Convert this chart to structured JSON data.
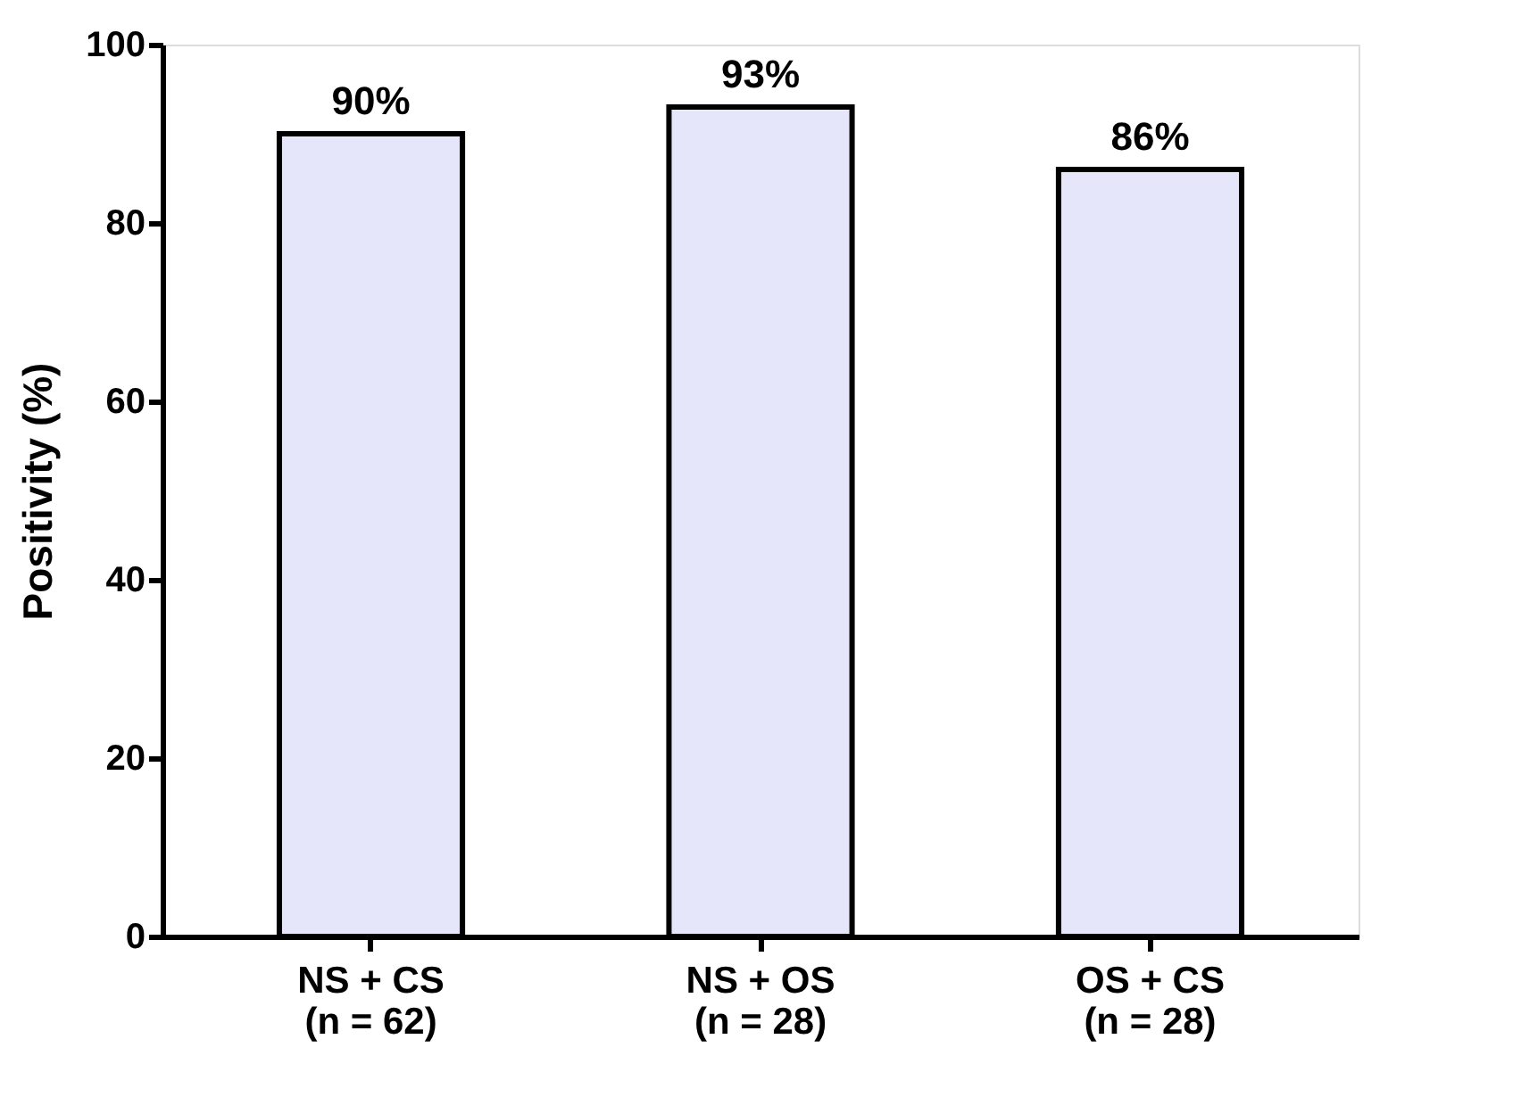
{
  "chart_data": {
    "type": "bar",
    "ylabel": "Positivity (%)",
    "categories": [
      "NS + CS\n(n = 62)",
      "NS + OS\n(n = 28)",
      "OS + CS\n(n = 28)"
    ],
    "values": [
      90,
      93,
      86
    ],
    "color": "#e6e6fa",
    "value_labels": [
      "90%",
      "93%",
      "86%"
    ],
    "ylim": [
      0,
      100
    ],
    "yticks": [
      0,
      20,
      40,
      60,
      80,
      100
    ],
    "grid": false
  }
}
